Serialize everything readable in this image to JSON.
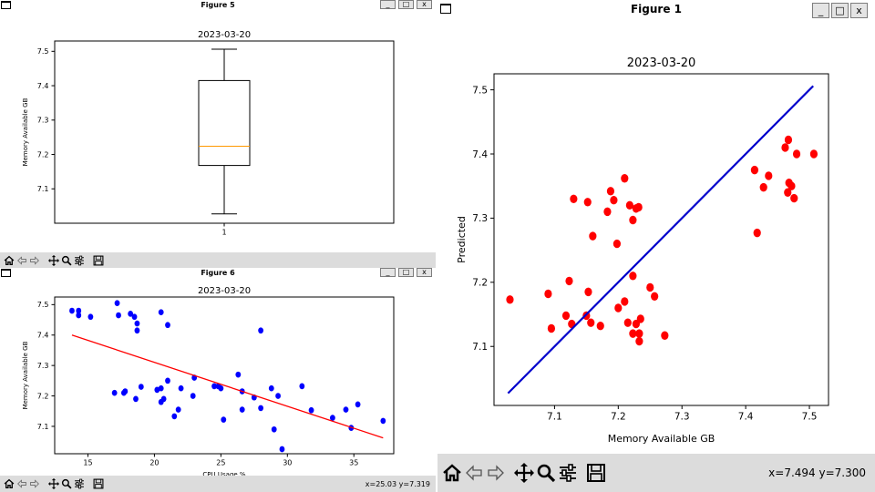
{
  "windows": {
    "fig5": {
      "title": "Figure 5"
    },
    "fig6": {
      "title": "Figure 6",
      "coords": "x=25.03 y=7.319"
    },
    "fig1": {
      "title": "Figure 1",
      "coords": "x=7.494 y=7.300"
    }
  },
  "window_buttons": {
    "minimize": "_",
    "maximize": "□",
    "close": "x"
  },
  "toolbar_icons": [
    "home-icon",
    "back-arrow-icon",
    "forward-arrow-icon",
    "pan-icon",
    "zoom-icon",
    "configure-subplots-icon",
    "save-icon"
  ],
  "chart_data": [
    {
      "id": "fig5",
      "type": "box",
      "title": "2023-03-20",
      "ylabel": "Memory Available GB",
      "categories": [
        "1"
      ],
      "box": {
        "whisker_low": 7.027,
        "q1": 7.168,
        "median": 7.224,
        "q3": 7.415,
        "whisker_high": 7.506
      },
      "ylim": [
        7.0,
        7.53
      ],
      "yticks": [
        "7.1",
        "7.2",
        "7.3",
        "7.4",
        "7.5"
      ],
      "ytick_values": [
        7.1,
        7.2,
        7.3,
        7.4,
        7.5
      ],
      "colors": {
        "box": "#000000",
        "median": "#ff9900"
      }
    },
    {
      "id": "fig6",
      "type": "scatter",
      "title": "2023-03-20",
      "xlabel": "CPU Usage %",
      "ylabel": "Memory Available GB",
      "xlim": [
        12.5,
        38.0
      ],
      "ylim": [
        7.01,
        7.525
      ],
      "xticks": [
        "15",
        "20",
        "25",
        "30",
        "35"
      ],
      "xtick_values": [
        15,
        20,
        25,
        30,
        35
      ],
      "yticks": [
        "7.1",
        "7.2",
        "7.3",
        "7.4",
        "7.5"
      ],
      "ytick_values": [
        7.1,
        7.2,
        7.3,
        7.4,
        7.5
      ],
      "points": [
        [
          13.8,
          7.48
        ],
        [
          14.3,
          7.48
        ],
        [
          14.3,
          7.465
        ],
        [
          15.2,
          7.46
        ],
        [
          17.2,
          7.505
        ],
        [
          17.3,
          7.465
        ],
        [
          18.2,
          7.47
        ],
        [
          18.5,
          7.46
        ],
        [
          18.7,
          7.438
        ],
        [
          18.7,
          7.415
        ],
        [
          20.5,
          7.475
        ],
        [
          21.0,
          7.433
        ],
        [
          17.0,
          7.21
        ],
        [
          17.7,
          7.21
        ],
        [
          17.8,
          7.215
        ],
        [
          18.6,
          7.19
        ],
        [
          19.0,
          7.23
        ],
        [
          20.2,
          7.22
        ],
        [
          20.5,
          7.225
        ],
        [
          20.5,
          7.18
        ],
        [
          20.7,
          7.19
        ],
        [
          21.0,
          7.25
        ],
        [
          21.5,
          7.133
        ],
        [
          21.8,
          7.155
        ],
        [
          22.0,
          7.225
        ],
        [
          22.9,
          7.2
        ],
        [
          23.0,
          7.26
        ],
        [
          24.5,
          7.232
        ],
        [
          24.8,
          7.232
        ],
        [
          25.0,
          7.225
        ],
        [
          25.2,
          7.122
        ],
        [
          26.3,
          7.27
        ],
        [
          26.6,
          7.215
        ],
        [
          26.6,
          7.155
        ],
        [
          27.5,
          7.195
        ],
        [
          28.0,
          7.16
        ],
        [
          28.0,
          7.415
        ],
        [
          28.8,
          7.225
        ],
        [
          29.0,
          7.09
        ],
        [
          29.3,
          7.2
        ],
        [
          29.6,
          7.025
        ],
        [
          31.1,
          7.232
        ],
        [
          31.8,
          7.153
        ],
        [
          33.4,
          7.128
        ],
        [
          34.4,
          7.155
        ],
        [
          34.8,
          7.095
        ],
        [
          35.3,
          7.172
        ],
        [
          37.2,
          7.118
        ]
      ],
      "fit_line": [
        [
          13.8,
          7.4
        ],
        [
          37.2,
          7.062
        ]
      ],
      "colors": {
        "points": "#0000ff",
        "line": "#ff0000"
      }
    },
    {
      "id": "fig1",
      "type": "scatter",
      "title": "2023-03-20",
      "xlabel": "Memory Available GB",
      "ylabel": "Predicted",
      "xlim": [
        7.005,
        7.53
      ],
      "ylim": [
        7.008,
        7.525
      ],
      "xticks": [
        "7.1",
        "7.2",
        "7.3",
        "7.4",
        "7.5"
      ],
      "xtick_values": [
        7.1,
        7.2,
        7.3,
        7.4,
        7.5
      ],
      "yticks": [
        "7.1",
        "7.2",
        "7.3",
        "7.4",
        "7.5"
      ],
      "ytick_values": [
        7.1,
        7.2,
        7.3,
        7.4,
        7.5
      ],
      "points": [
        [
          7.03,
          7.173
        ],
        [
          7.09,
          7.182
        ],
        [
          7.095,
          7.128
        ],
        [
          7.118,
          7.148
        ],
        [
          7.123,
          7.202
        ],
        [
          7.127,
          7.135
        ],
        [
          7.13,
          7.33
        ],
        [
          7.15,
          7.148
        ],
        [
          7.152,
          7.325
        ],
        [
          7.153,
          7.185
        ],
        [
          7.157,
          7.137
        ],
        [
          7.16,
          7.272
        ],
        [
          7.172,
          7.132
        ],
        [
          7.183,
          7.31
        ],
        [
          7.188,
          7.342
        ],
        [
          7.193,
          7.328
        ],
        [
          7.198,
          7.26
        ],
        [
          7.2,
          7.16
        ],
        [
          7.21,
          7.362
        ],
        [
          7.21,
          7.17
        ],
        [
          7.215,
          7.137
        ],
        [
          7.218,
          7.32
        ],
        [
          7.223,
          7.297
        ],
        [
          7.223,
          7.21
        ],
        [
          7.223,
          7.12
        ],
        [
          7.228,
          7.135
        ],
        [
          7.228,
          7.315
        ],
        [
          7.232,
          7.317
        ],
        [
          7.233,
          7.12
        ],
        [
          7.235,
          7.143
        ],
        [
          7.233,
          7.108
        ],
        [
          7.25,
          7.192
        ],
        [
          7.257,
          7.178
        ],
        [
          7.273,
          7.117
        ],
        [
          7.414,
          7.375
        ],
        [
          7.418,
          7.277
        ],
        [
          7.428,
          7.348
        ],
        [
          7.436,
          7.366
        ],
        [
          7.462,
          7.41
        ],
        [
          7.466,
          7.34
        ],
        [
          7.467,
          7.422
        ],
        [
          7.468,
          7.355
        ],
        [
          7.472,
          7.35
        ],
        [
          7.476,
          7.331
        ],
        [
          7.48,
          7.4
        ],
        [
          7.507,
          7.4
        ]
      ],
      "fit_line": [
        [
          7.027,
          7.027
        ],
        [
          7.506,
          7.506
        ]
      ],
      "colors": {
        "points": "#ff0000",
        "line": "#0000cc"
      }
    }
  ]
}
